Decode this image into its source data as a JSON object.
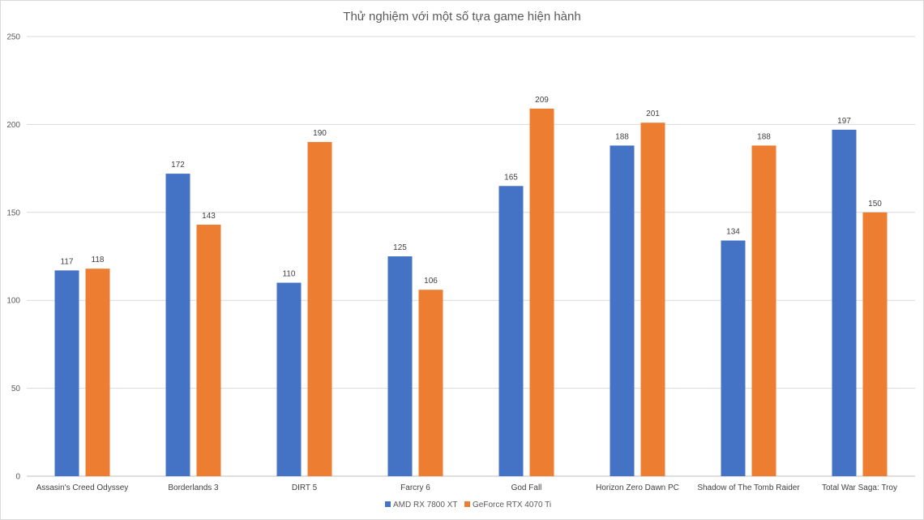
{
  "chart_data": {
    "type": "bar",
    "title": "Thử nghiệm với một số tựa game hiện hành",
    "xlabel": "",
    "ylabel": "",
    "ylim": [
      0,
      250
    ],
    "yticks": [
      0,
      50,
      100,
      150,
      200,
      250
    ],
    "grid": true,
    "legend_position": "bottom",
    "categories": [
      "Assasin's Creed Odyssey",
      "Borderlands 3",
      "DIRT 5",
      "Farcry 6",
      "God Fall",
      "Horizon Zero Dawn PC",
      "Shadow of The Tomb Raider",
      "Total War Saga: Troy"
    ],
    "series": [
      {
        "name": "AMD RX 7800 XT",
        "color": "#4472c4",
        "values": [
          117,
          172,
          110,
          125,
          165,
          188,
          134,
          197
        ]
      },
      {
        "name": "GeForce RTX 4070 Ti",
        "color": "#ed7d31",
        "values": [
          118,
          143,
          190,
          106,
          209,
          201,
          188,
          150
        ]
      }
    ]
  }
}
